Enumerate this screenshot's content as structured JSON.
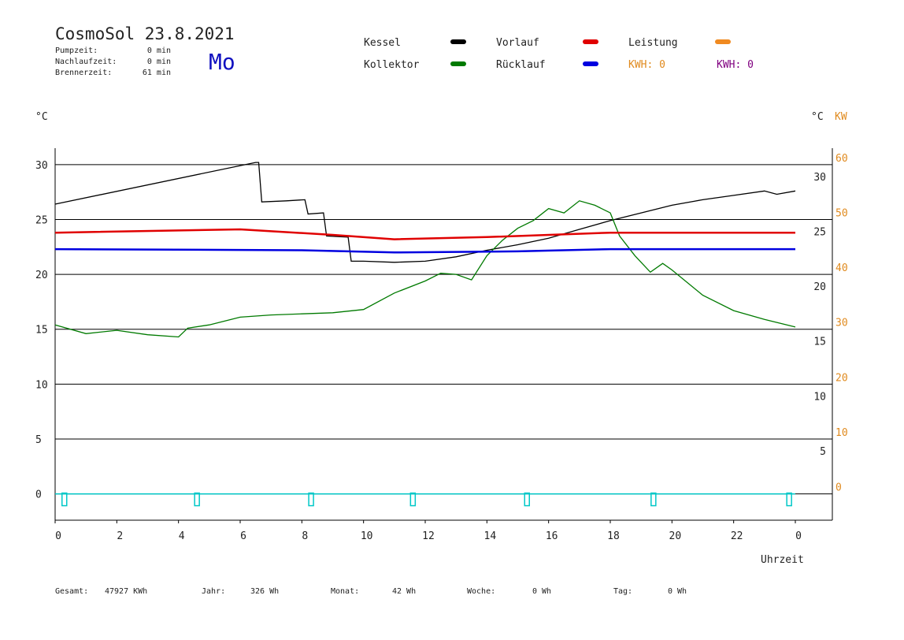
{
  "header": {
    "title": "CosmoSol 23.8.2021",
    "day": "Mo",
    "stats": [
      {
        "label": "Pumpzeit:",
        "value": "0 min"
      },
      {
        "label": "Nachlaufzeit:",
        "value": "0 min"
      },
      {
        "label": "Brennerzeit:",
        "value": "61 min"
      }
    ]
  },
  "legend_extra": [
    {
      "text": "KWH: 0",
      "color": "#e08a1e"
    },
    {
      "text": "KWH: 0",
      "color": "#800080"
    }
  ],
  "chart_data": {
    "type": "line",
    "y_unit": "°C",
    "y2_unit": "°C",
    "y2_unit_kw": "KW",
    "xlabel": "Uhrzeit",
    "xlim": [
      0,
      25.2
    ],
    "xticks": [
      0,
      2,
      4,
      6,
      8,
      10,
      12,
      14,
      16,
      18,
      20,
      22,
      {
        "value": 24,
        "label": "0"
      }
    ],
    "ylim": [
      -2.4,
      31.5
    ],
    "yticks": [
      0,
      5,
      10,
      15,
      20,
      25,
      30
    ],
    "y2lim": [
      -4.8,
      63
    ],
    "y2ticks": [
      0,
      10,
      20,
      30,
      40,
      50,
      60
    ],
    "y2color": "#e08a1e",
    "grid": true,
    "series": [
      {
        "name": "Kessel",
        "color": "#000000",
        "x": [
          0,
          6.5,
          6.6,
          6.7,
          7.5,
          8.1,
          8.2,
          8.7,
          8.8,
          9.5,
          9.6,
          10,
          11,
          12,
          13,
          14,
          15,
          16,
          17,
          18,
          19,
          20,
          21,
          22,
          23,
          23.4,
          24
        ],
        "values": [
          26.4,
          30.2,
          30.2,
          26.6,
          26.7,
          26.8,
          25.5,
          25.6,
          23.5,
          23.4,
          21.2,
          21.2,
          21.1,
          21.2,
          21.6,
          22.2,
          22.7,
          23.3,
          24.1,
          24.9,
          25.6,
          26.3,
          26.8,
          27.2,
          27.6,
          27.3,
          27.6
        ]
      },
      {
        "name": "Kollektor",
        "color": "#007a00",
        "x": [
          0,
          1,
          2,
          3,
          4,
          4.3,
          5,
          6,
          7,
          8,
          9,
          10,
          11,
          12,
          12.5,
          13,
          13.5,
          14,
          14.5,
          15,
          15.5,
          16,
          16.5,
          17,
          17.5,
          18,
          18.3,
          18.8,
          19.3,
          19.7,
          20,
          21,
          22,
          23,
          24
        ],
        "values": [
          15.4,
          14.6,
          14.9,
          14.5,
          14.3,
          15.1,
          15.4,
          16.1,
          16.3,
          16.4,
          16.5,
          16.8,
          18.3,
          19.4,
          20.1,
          20.0,
          19.5,
          21.7,
          23.1,
          24.2,
          24.9,
          26.0,
          25.6,
          26.7,
          26.3,
          25.6,
          23.5,
          21.7,
          20.2,
          21.0,
          20.4,
          18.1,
          16.7,
          15.9,
          15.2
        ]
      },
      {
        "name": "Vorlauf",
        "color": "#e00000",
        "x": [
          0,
          6,
          9,
          11,
          14,
          18,
          24
        ],
        "values": [
          23.8,
          24.1,
          23.6,
          23.2,
          23.4,
          23.8,
          23.8
        ]
      },
      {
        "name": "Rücklauf",
        "color": "#0000e0",
        "x": [
          0,
          8,
          11,
          15,
          18,
          24
        ],
        "values": [
          22.3,
          22.2,
          22.0,
          22.1,
          22.3,
          22.3
        ]
      },
      {
        "name": "Leistung",
        "color": "#f08a20",
        "x": [],
        "values": []
      }
    ],
    "markers": {
      "color": "#00c8c8",
      "x": [
        0.3,
        4.6,
        8.3,
        11.6,
        15.3,
        19.4,
        23.8
      ]
    }
  },
  "footer": [
    {
      "label": "Gesamt:",
      "value": "47927 KWh"
    },
    {
      "label": "Jahr:",
      "value": "326 Wh"
    },
    {
      "label": "Monat:",
      "value": "42 Wh"
    },
    {
      "label": "Woche:",
      "value": "0 Wh"
    },
    {
      "label": "Tag:",
      "value": "0 Wh"
    }
  ]
}
